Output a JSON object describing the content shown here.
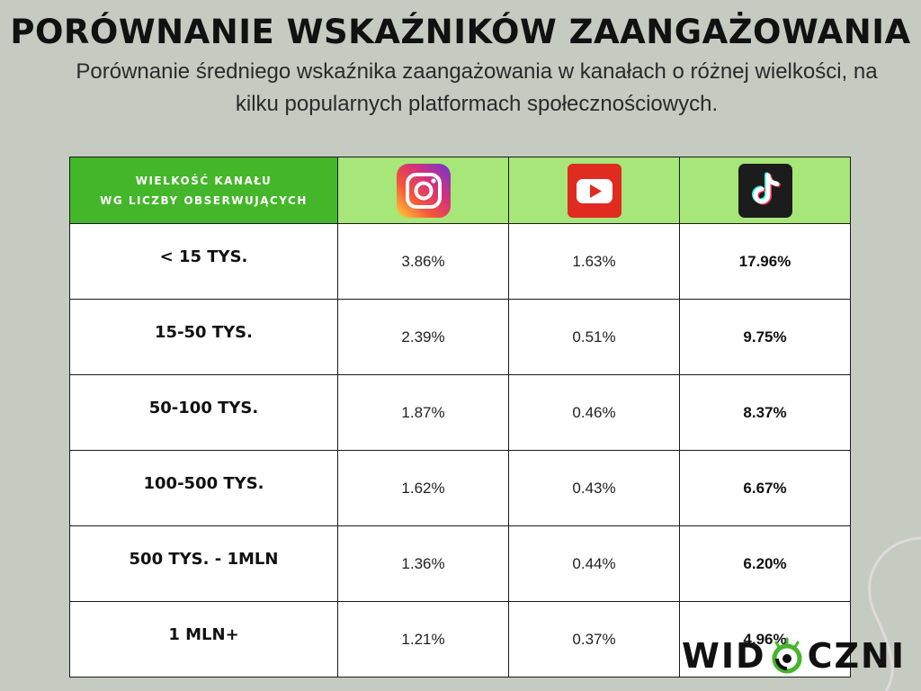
{
  "header": {
    "title": "Porównanie wskaźników zaangażowania",
    "subtitle": "Porównanie średniego wskaźnika zaangażowania w kanałach o różnej wielkości, na kilku popularnych platformach społecznościowych."
  },
  "table": {
    "header_label_line1": "Wielkość kanału",
    "header_label_line2": "wg liczby obserwujących",
    "platforms": [
      {
        "icon": "instagram-icon"
      },
      {
        "icon": "youtube-icon"
      },
      {
        "icon": "tiktok-icon"
      }
    ],
    "rows": [
      {
        "label": "< 15 tys.",
        "instagram": "3.86%",
        "youtube": "1.63%",
        "tiktok": "17.96%"
      },
      {
        "label": "15-50 tys.",
        "instagram": "2.39%",
        "youtube": "0.51%",
        "tiktok": "9.75%"
      },
      {
        "label": "50-100 tys.",
        "instagram": "1.87%",
        "youtube": "0.46%",
        "tiktok": "8.37%"
      },
      {
        "label": "100-500 tys.",
        "instagram": "1.62%",
        "youtube": "0.43%",
        "tiktok": "6.67%"
      },
      {
        "label": "500 tys. - 1mln",
        "instagram": "1.36%",
        "youtube": "0.44%",
        "tiktok": "6.20%"
      },
      {
        "label": "1 mln+",
        "instagram": "1.21%",
        "youtube": "0.37%",
        "tiktok": "4.96%"
      }
    ]
  },
  "brand": {
    "logo_left": "WID",
    "logo_right": "CZNI",
    "logo_icon": "eye-logo-icon",
    "accent_color": "#44b62a"
  },
  "colors": {
    "background": "#c5cbc1",
    "header_dark_green": "#44b62a",
    "header_light_green": "#a7e678"
  }
}
